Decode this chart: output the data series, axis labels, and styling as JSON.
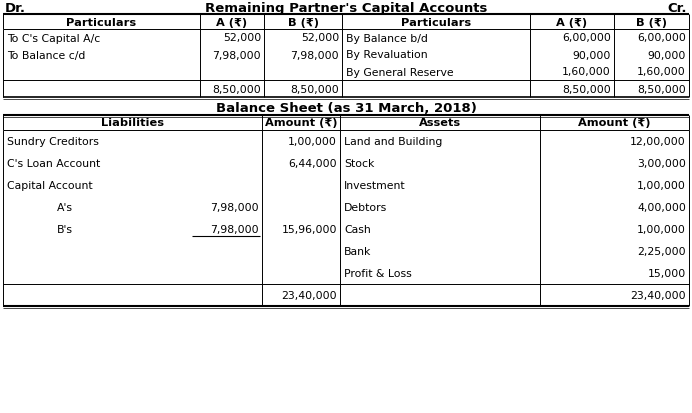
{
  "title1": "Remaining Partner's Capital Accounts",
  "title2": "Balance Sheet (as 31 March, 2018)",
  "dr": "Dr.",
  "cr": "Cr.",
  "cap_rows": [
    [
      "To C's Capital A/c",
      "52,000",
      "52,000",
      "By Balance b/d",
      "6,00,000",
      "6,00,000"
    ],
    [
      "To Balance c/d",
      "7,98,000",
      "7,98,000",
      "By Revaluation",
      "90,000",
      "90,000"
    ],
    [
      "",
      "",
      "",
      "By General Reserve",
      "1,60,000",
      "1,60,000"
    ],
    [
      "",
      "8,50,000",
      "8,50,000",
      "",
      "8,50,000",
      "8,50,000"
    ]
  ],
  "bs_rows": [
    [
      "Sundry Creditors",
      "",
      "1,00,000",
      "Land and Building",
      "12,00,000"
    ],
    [
      "C's Loan Account",
      "",
      "6,44,000",
      "Stock",
      "3,00,000"
    ],
    [
      "Capital Account",
      "",
      "",
      "Investment",
      "1,00,000"
    ],
    [
      "A's",
      "7,98,000",
      "",
      "Debtors",
      "4,00,000"
    ],
    [
      "B's",
      "7,98,000",
      "15,96,000",
      "Cash",
      "1,00,000"
    ],
    [
      "",
      "",
      "",
      "Bank",
      "2,25,000"
    ],
    [
      "",
      "",
      "",
      "Profit & Loss",
      "15,000"
    ],
    [
      "",
      "",
      "23,40,000",
      "",
      "23,40,000"
    ]
  ],
  "bg_color": "#ffffff",
  "text_color": "#000000",
  "fs_title": 9.5,
  "fs_header": 8.2,
  "fs_data": 7.8
}
